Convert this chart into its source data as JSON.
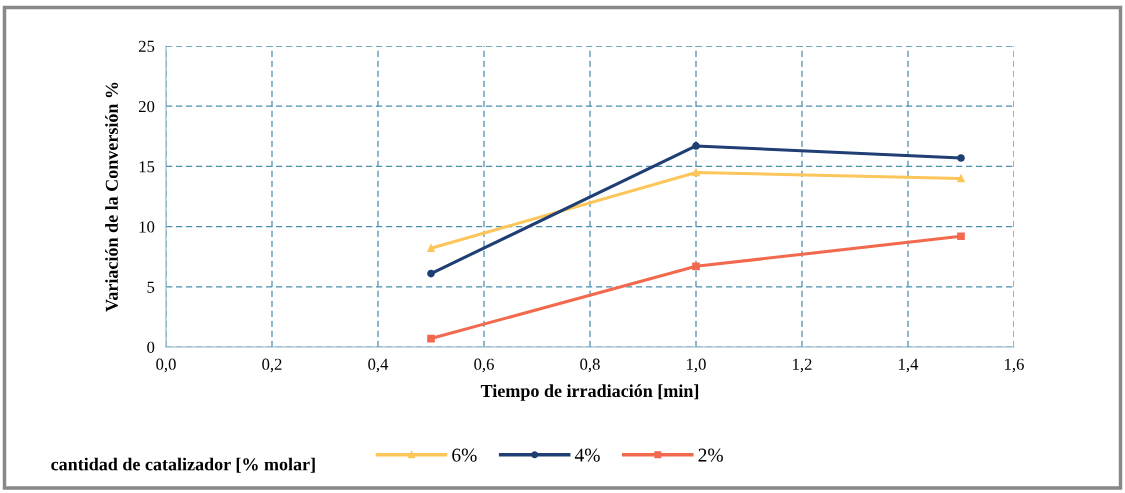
{
  "chart_data": {
    "type": "line",
    "xlabel": "Tiempo de irradiación [min]",
    "ylabel": "Variación de la Conversión %",
    "legend_title": "cantidad de catalizador [% molar]",
    "x": [
      0.5,
      1.0,
      1.5
    ],
    "series": [
      {
        "name": "6%",
        "color": "#fcc65a",
        "marker": "triangle",
        "values": [
          8.2,
          14.5,
          14.0
        ]
      },
      {
        "name": "4%",
        "color": "#1f3e73",
        "marker": "circle",
        "values": [
          6.1,
          16.7,
          15.7
        ]
      },
      {
        "name": "2%",
        "color": "#f2694e",
        "marker": "square",
        "values": [
          0.7,
          6.7,
          9.2
        ]
      }
    ],
    "xlim": [
      0,
      1.6
    ],
    "xticks": [
      {
        "value": 0,
        "label": "0,0"
      },
      {
        "value": 0.2,
        "label": "0,2"
      },
      {
        "value": 0.4,
        "label": "0,4"
      },
      {
        "value": 0.6,
        "label": "0,6"
      },
      {
        "value": 0.8,
        "label": "0,8"
      },
      {
        "value": 1.0,
        "label": "1,0"
      },
      {
        "value": 1.2,
        "label": "1,2"
      },
      {
        "value": 1.4,
        "label": "1,4"
      },
      {
        "value": 1.6,
        "label": "1,6"
      }
    ],
    "ylim": [
      0,
      25
    ],
    "yticks": [
      0,
      5,
      10,
      15,
      20,
      25
    ],
    "grid": true,
    "legend": "bottom",
    "line_style": "solid"
  }
}
